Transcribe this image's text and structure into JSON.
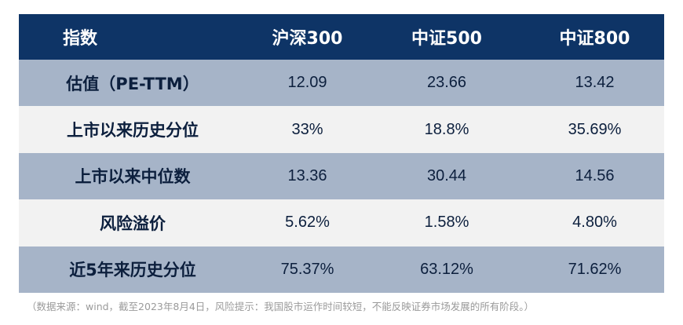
{
  "table": {
    "headers": [
      "指数",
      "沪深300",
      "中证500",
      "中证800"
    ],
    "rows": [
      {
        "label": "估值（PE-TTM）",
        "values": [
          "12.09",
          "23.66",
          "13.42"
        ]
      },
      {
        "label": "上市以来历史分位",
        "values": [
          "33%",
          "18.8%",
          "35.69%"
        ]
      },
      {
        "label": "上市以来中位数",
        "values": [
          "13.36",
          "30.44",
          "14.56"
        ]
      },
      {
        "label": "风险溢价",
        "values": [
          "5.62%",
          "1.58%",
          "4.80%"
        ]
      },
      {
        "label": "近5年来历史分位",
        "values": [
          "75.37%",
          "63.12%",
          "71.62%"
        ]
      }
    ]
  },
  "footnote": "（数据来源：wind，截至2023年8月4日，风险提示：我国股市运作时间较短，不能反映证券市场发展的所有阶段。）",
  "colors": {
    "header_bg": "#0e3466",
    "shade_row_bg": "#a6b4c8",
    "light_row_bg": "#f2f2f2",
    "text_dark": "#0c1f3d"
  }
}
